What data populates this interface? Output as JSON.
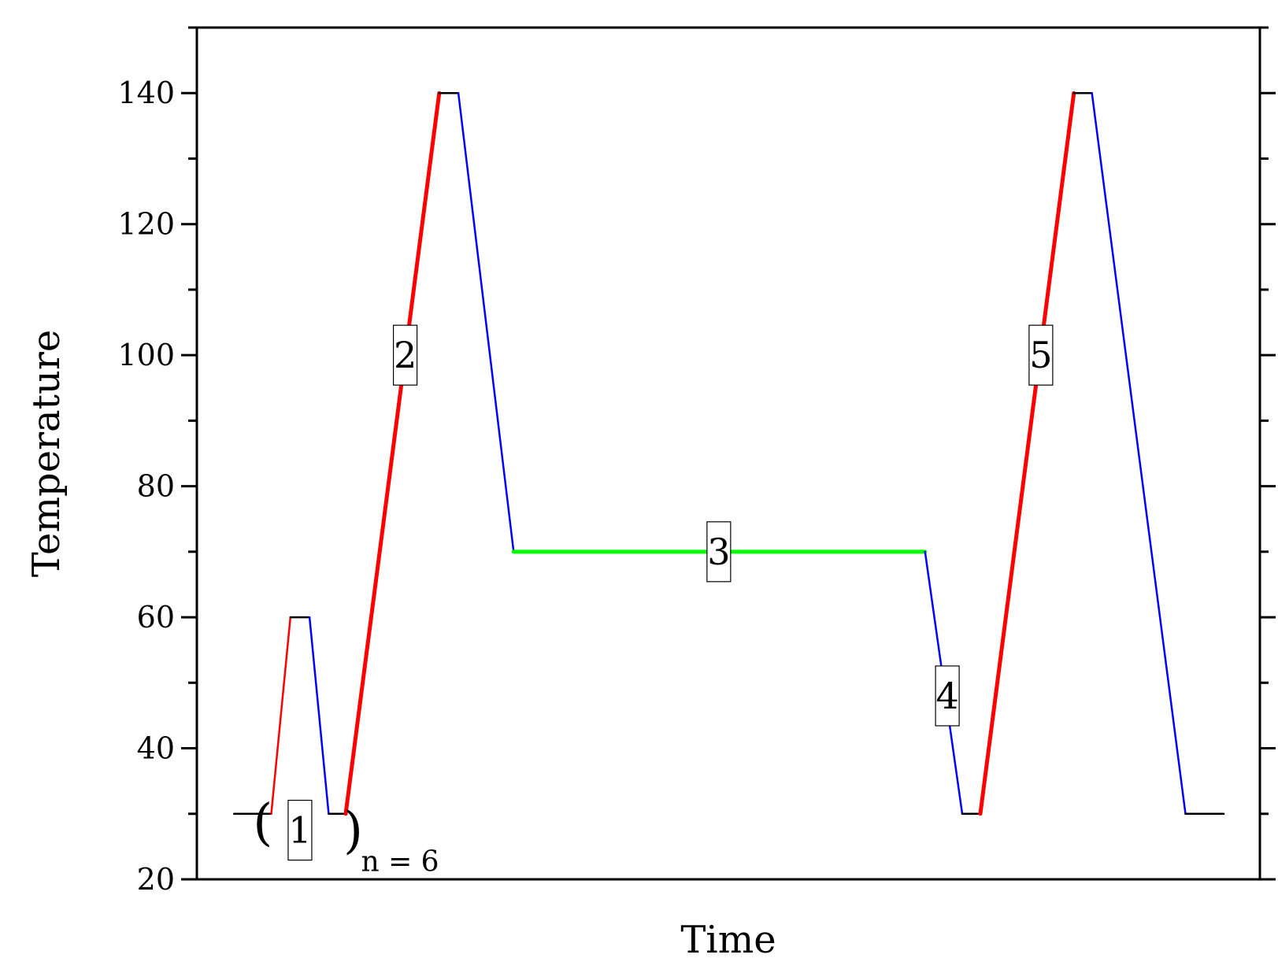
{
  "chart_data": {
    "type": "line",
    "title": "",
    "xlabel": "Time",
    "ylabel": "Temperature",
    "ylim": [
      20,
      150
    ],
    "xlim": [
      0,
      100
    ],
    "y_ticks": [
      20,
      40,
      60,
      80,
      100,
      120,
      140
    ],
    "x_ticks_shown": false,
    "grid": false,
    "legend": "none",
    "colors": {
      "heating": "#ff0000",
      "cooling": "#0000ff",
      "hold": "#000000",
      "isothermal": "#00ff00"
    },
    "segments": [
      {
        "kind": "hold",
        "x": [
          3.5,
          7.0
        ],
        "y": [
          30,
          30
        ]
      },
      {
        "kind": "heating",
        "x": [
          7.0,
          8.8
        ],
        "y": [
          30,
          60
        ],
        "weight": "thin"
      },
      {
        "kind": "hold",
        "x": [
          8.8,
          10.6
        ],
        "y": [
          60,
          60
        ]
      },
      {
        "kind": "cooling",
        "x": [
          10.6,
          12.4
        ],
        "y": [
          60,
          30
        ]
      },
      {
        "kind": "hold",
        "x": [
          12.4,
          14.0
        ],
        "y": [
          30,
          30
        ]
      },
      {
        "kind": "heating",
        "x": [
          14.0,
          22.8
        ],
        "y": [
          30,
          140
        ],
        "weight": "thick"
      },
      {
        "kind": "hold",
        "x": [
          22.8,
          24.6
        ],
        "y": [
          140,
          140
        ]
      },
      {
        "kind": "cooling",
        "x": [
          24.6,
          29.8
        ],
        "y": [
          140,
          70
        ]
      },
      {
        "kind": "isothermal",
        "x": [
          29.8,
          68.5
        ],
        "y": [
          70,
          70
        ],
        "weight": "thick"
      },
      {
        "kind": "cooling",
        "x": [
          68.5,
          72.0
        ],
        "y": [
          70,
          30
        ]
      },
      {
        "kind": "hold",
        "x": [
          72.0,
          73.7
        ],
        "y": [
          30,
          30
        ]
      },
      {
        "kind": "heating",
        "x": [
          73.7,
          82.5
        ],
        "y": [
          30,
          140
        ],
        "weight": "thick"
      },
      {
        "kind": "hold",
        "x": [
          82.5,
          84.2
        ],
        "y": [
          140,
          140
        ]
      },
      {
        "kind": "cooling",
        "x": [
          84.2,
          93.0
        ],
        "y": [
          140,
          30
        ]
      },
      {
        "kind": "hold",
        "x": [
          93.0,
          96.6
        ],
        "y": [
          30,
          30
        ]
      }
    ],
    "step_labels": [
      {
        "text": "1",
        "x": 9.7,
        "y": 27.5
      },
      {
        "text": "2",
        "x": 19.6,
        "y": 100
      },
      {
        "text": "3",
        "x": 49.1,
        "y": 70
      },
      {
        "text": "4",
        "x": 70.6,
        "y": 48
      },
      {
        "text": "5",
        "x": 79.4,
        "y": 100
      }
    ],
    "repeat": {
      "open": "(",
      "close": ")",
      "note": "n = 6",
      "x_open": 6.2,
      "x_close": 14.7,
      "y": 27.5
    }
  }
}
